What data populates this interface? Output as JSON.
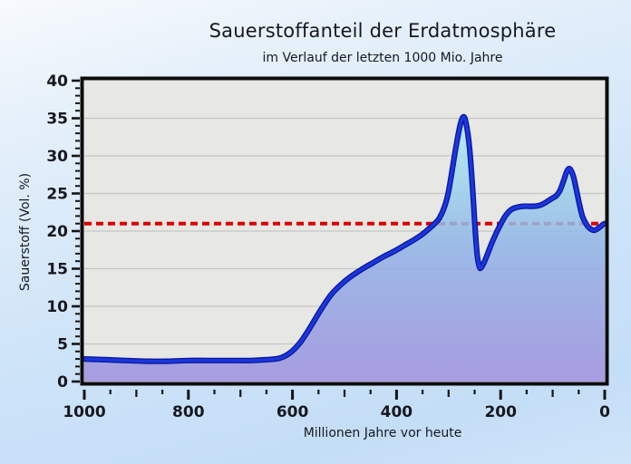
{
  "chart_data": {
    "type": "area",
    "title": "Sauerstoffanteil der Erdatmosphäre",
    "subtitle": "im Verlauf der letzten 1000 Mio. Jahre",
    "x_axis": {
      "label": "Millionen Jahre vor heute",
      "tick_labels": [
        "1000",
        "800",
        "600",
        "400",
        "200",
        "0"
      ],
      "tick_values": [
        1000,
        800,
        600,
        400,
        200,
        0
      ],
      "minor_tick_step": 50,
      "range_left_to_right": [
        1000,
        0
      ]
    },
    "y_axis": {
      "label": "Sauerstoff (Vol. %)",
      "tick_labels": [
        "40",
        "35",
        "30",
        "25",
        "20",
        "15",
        "10",
        "5",
        "0"
      ],
      "tick_values": [
        40,
        35,
        30,
        25,
        20,
        15,
        10,
        5,
        0
      ],
      "minor_tick_step": 1,
      "range": [
        0,
        40
      ]
    },
    "grid": "horizontal-at-major-y-ticks",
    "legend": "none",
    "reference_line": {
      "value": 21,
      "style": "dashed",
      "color": "#dd0000"
    },
    "series": {
      "points_mya_pct": [
        [
          1000,
          3.0
        ],
        [
          960,
          2.9
        ],
        [
          920,
          2.8
        ],
        [
          880,
          2.7
        ],
        [
          840,
          2.7
        ],
        [
          800,
          2.8
        ],
        [
          760,
          2.8
        ],
        [
          720,
          2.8
        ],
        [
          680,
          2.8
        ],
        [
          650,
          2.9
        ],
        [
          625,
          3.1
        ],
        [
          605,
          3.8
        ],
        [
          585,
          5.2
        ],
        [
          565,
          7.3
        ],
        [
          545,
          9.6
        ],
        [
          525,
          11.6
        ],
        [
          505,
          13.0
        ],
        [
          485,
          14.1
        ],
        [
          465,
          15.0
        ],
        [
          445,
          15.8
        ],
        [
          425,
          16.6
        ],
        [
          405,
          17.3
        ],
        [
          385,
          18.1
        ],
        [
          365,
          18.9
        ],
        [
          350,
          19.6
        ],
        [
          338,
          20.3
        ],
        [
          328,
          20.9
        ],
        [
          318,
          21.7
        ],
        [
          308,
          23.2
        ],
        [
          300,
          25.3
        ],
        [
          292,
          28.6
        ],
        [
          284,
          31.9
        ],
        [
          277,
          34.3
        ],
        [
          271,
          35.2
        ],
        [
          266,
          34.2
        ],
        [
          260,
          31.2
        ],
        [
          254,
          25.8
        ],
        [
          249,
          20.3
        ],
        [
          245,
          16.8
        ],
        [
          241,
          15.3
        ],
        [
          238,
          15.1
        ],
        [
          232,
          15.8
        ],
        [
          225,
          17.0
        ],
        [
          217,
          18.4
        ],
        [
          208,
          19.8
        ],
        [
          200,
          20.9
        ],
        [
          192,
          21.9
        ],
        [
          184,
          22.6
        ],
        [
          176,
          23.0
        ],
        [
          166,
          23.2
        ],
        [
          156,
          23.3
        ],
        [
          146,
          23.3
        ],
        [
          136,
          23.3
        ],
        [
          126,
          23.4
        ],
        [
          116,
          23.7
        ],
        [
          107,
          24.1
        ],
        [
          100,
          24.4
        ],
        [
          93,
          24.7
        ],
        [
          86,
          25.4
        ],
        [
          79,
          26.7
        ],
        [
          73,
          27.9
        ],
        [
          69,
          28.3
        ],
        [
          65,
          28.1
        ],
        [
          60,
          27.2
        ],
        [
          55,
          25.7
        ],
        [
          49,
          23.7
        ],
        [
          43,
          22.0
        ],
        [
          37,
          21.1
        ],
        [
          31,
          20.5
        ],
        [
          25,
          20.2
        ],
        [
          20,
          20.1
        ],
        [
          14,
          20.3
        ],
        [
          8,
          20.6
        ],
        [
          3,
          20.9
        ],
        [
          0,
          21.0
        ]
      ]
    },
    "colors": {
      "curve_stroke": "#1c36de",
      "curve_stroke_dark": "#0b1b9e",
      "fill_top": "#bff0f7",
      "fill_upper_mid": "#9fd9ef",
      "fill_lower_mid": "#8fb3e7",
      "fill_bottom": "#9c8fe0",
      "plot_background": "#e7e7e4",
      "gridline": "#c5c5c2",
      "frame": "#0c0c0c",
      "tick": "#141414",
      "reference_red": "#dd0000",
      "page_background_top": "#f7fafd",
      "page_background_bottom": "#c4def7",
      "text": "#17171f"
    }
  }
}
